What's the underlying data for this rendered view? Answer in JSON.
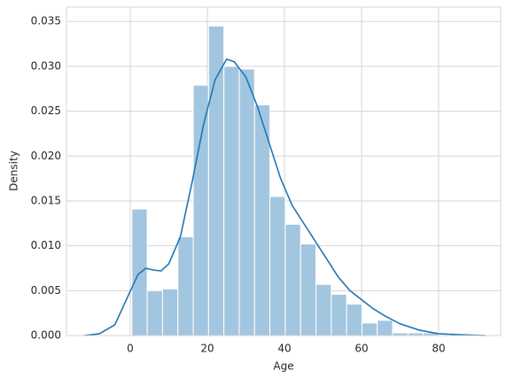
{
  "chart_data": {
    "type": "histogram",
    "xlabel": "Age",
    "ylabel": "Density",
    "bins": [
      0.42,
      4.4,
      8.38,
      12.36,
      16.34,
      20.32,
      24.29,
      28.27,
      32.25,
      36.23,
      40.21,
      44.19,
      48.17,
      52.15,
      56.13,
      60.11,
      64.08,
      68.06,
      72.04,
      76.02,
      80.0
    ],
    "values": [
      0.0141,
      0.005,
      0.0052,
      0.011,
      0.0279,
      0.0345,
      0.03,
      0.0297,
      0.0257,
      0.0155,
      0.0124,
      0.0102,
      0.0057,
      0.0046,
      0.0035,
      0.0014,
      0.0017,
      0.0003,
      0.0003,
      0.0003
    ],
    "color": "#a3c6e0",
    "kde": {
      "color": "#1f77b4",
      "x": [
        -12,
        -8,
        -4,
        -1,
        2,
        4,
        6,
        8,
        10,
        13,
        16,
        19,
        22,
        25,
        27,
        30,
        33,
        36,
        39,
        42,
        45,
        48,
        51,
        54,
        57,
        60,
        63,
        66,
        70,
        75,
        80,
        85,
        92
      ],
      "values": [
        0.0,
        0.0002,
        0.0012,
        0.004,
        0.0068,
        0.0075,
        0.0073,
        0.0072,
        0.008,
        0.011,
        0.017,
        0.0235,
        0.0285,
        0.0308,
        0.0305,
        0.0288,
        0.0255,
        0.0215,
        0.0175,
        0.0145,
        0.0125,
        0.0105,
        0.0085,
        0.0065,
        0.005,
        0.004,
        0.003,
        0.0022,
        0.0013,
        0.0006,
        0.0002,
        0.0001,
        0.0
      ]
    },
    "xlim": [
      -16.55,
      96.1
    ],
    "ylim": [
      0,
      0.0366
    ],
    "xticks": [
      0,
      20,
      40,
      60,
      80
    ],
    "yticks": [
      {
        "value": 0,
        "label": "0.000"
      },
      {
        "value": 0.005,
        "label": "0.005"
      },
      {
        "value": 0.01,
        "label": "0.010"
      },
      {
        "value": 0.015,
        "label": "0.015"
      },
      {
        "value": 0.02,
        "label": "0.020"
      },
      {
        "value": 0.025,
        "label": "0.025"
      },
      {
        "value": 0.03,
        "label": "0.030"
      },
      {
        "value": 0.035,
        "label": "0.035"
      }
    ],
    "grid": true
  }
}
